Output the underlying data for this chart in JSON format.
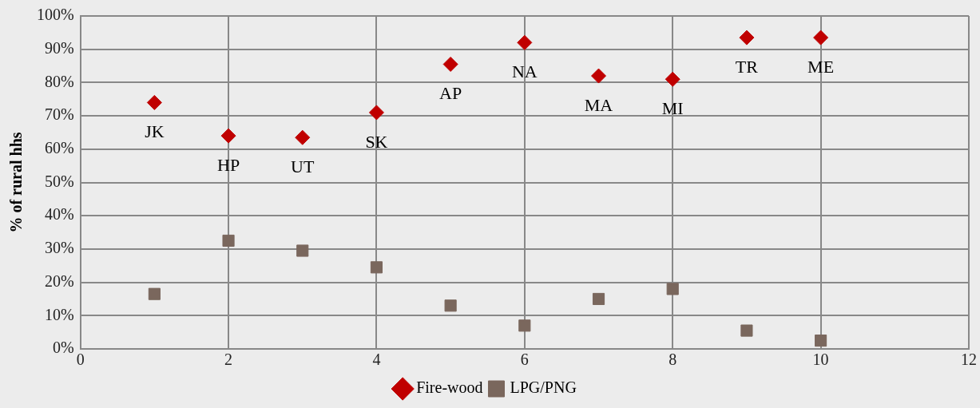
{
  "chart_data": {
    "type": "scatter",
    "ylabel": "% of rural hhs",
    "xlim": [
      0,
      12
    ],
    "xticks": [
      0,
      2,
      4,
      6,
      8,
      10,
      12
    ],
    "ylim": [
      0,
      100
    ],
    "yticks": [
      {
        "value": 0,
        "label": "0%"
      },
      {
        "value": 10,
        "label": "10%"
      },
      {
        "value": 20,
        "label": "20%"
      },
      {
        "value": 30,
        "label": "30%"
      },
      {
        "value": 40,
        "label": "40%"
      },
      {
        "value": 50,
        "label": "50%"
      },
      {
        "value": 60,
        "label": "60%"
      },
      {
        "value": 70,
        "label": "70%"
      },
      {
        "value": 80,
        "label": "80%"
      },
      {
        "value": 90,
        "label": "90%"
      },
      {
        "value": 100,
        "label": "100%"
      }
    ],
    "x": [
      1,
      2,
      3,
      4,
      5,
      6,
      7,
      8,
      9,
      10
    ],
    "series": [
      {
        "name": "Fire-wood",
        "color": "#c00000",
        "marker": "diamond",
        "values": [
          74,
          64,
          63.5,
          71,
          85.5,
          92,
          82,
          81,
          93.5,
          93.5
        ]
      },
      {
        "name": "LPG/PNG",
        "color": "#7a675d",
        "marker": "square",
        "values": [
          16.5,
          32.5,
          29.5,
          24.5,
          13,
          7,
          15,
          18,
          5.5,
          2.5
        ]
      }
    ],
    "annotations": [
      {
        "text": "JK",
        "x": 1,
        "y": 74
      },
      {
        "text": "HP",
        "x": 2,
        "y": 64
      },
      {
        "text": "UT",
        "x": 3,
        "y": 63.5
      },
      {
        "text": "SK",
        "x": 4,
        "y": 71
      },
      {
        "text": "AP",
        "x": 5,
        "y": 85.5
      },
      {
        "text": "NA",
        "x": 6,
        "y": 92
      },
      {
        "text": "MA",
        "x": 7,
        "y": 82
      },
      {
        "text": "MI",
        "x": 8,
        "y": 81
      },
      {
        "text": "TR",
        "x": 9,
        "y": 93.5
      },
      {
        "text": "ME",
        "x": 10,
        "y": 93.5
      }
    ],
    "grid": true,
    "legend": "bottom"
  }
}
